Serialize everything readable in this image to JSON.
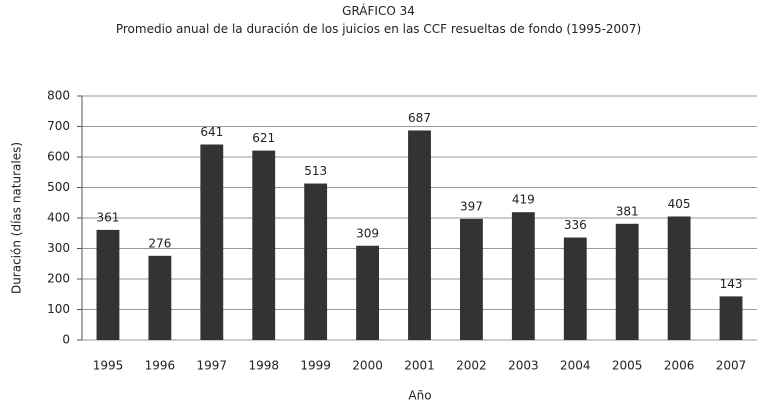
{
  "chart_data": {
    "type": "bar",
    "title": "GRÁFICO 34",
    "subtitle": "Promedio anual de la duración de los juicios en las CCF resueltas de fondo (1995-2007)",
    "x_label": "Año",
    "y_label": "Duración (días naturales)",
    "categories": [
      "1995",
      "1996",
      "1997",
      "1998",
      "1999",
      "2000",
      "2001",
      "2002",
      "2003",
      "2004",
      "2005",
      "2006",
      "2007"
    ],
    "values": [
      361,
      276,
      641,
      621,
      513,
      309,
      687,
      397,
      419,
      336,
      381,
      405,
      143
    ],
    "color": "#333333",
    "ylim": [
      0,
      800
    ],
    "yticks": [
      0,
      100,
      200,
      300,
      400,
      500,
      600,
      700,
      800
    ],
    "grid": true
  }
}
